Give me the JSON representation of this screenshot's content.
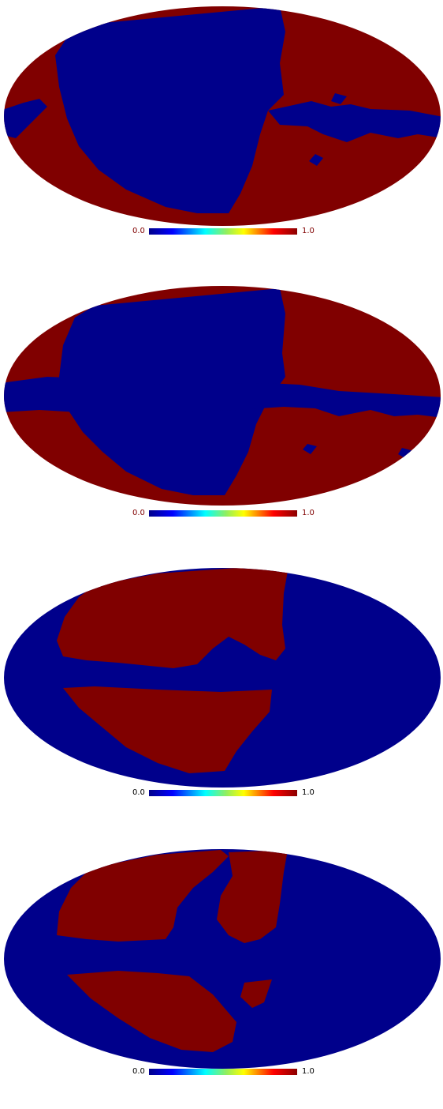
{
  "colors": {
    "zero": "#00008b",
    "one": "#800000"
  },
  "maps": [
    {
      "cbar_min": "0.0",
      "cbar_max": "1.0",
      "label_color": "#800000",
      "background": "one",
      "regions": [
        {
          "value": 0,
          "description": "large central and left-hemisphere blob"
        },
        {
          "value": 0,
          "description": "equatorial band on the right"
        },
        {
          "value": 0,
          "description": "left-edge equatorial patch"
        }
      ]
    },
    {
      "cbar_min": "0.0",
      "cbar_max": "1.0",
      "label_color": "#800000",
      "background": "one",
      "regions": [
        {
          "value": 0,
          "description": "large central blob"
        },
        {
          "value": 0,
          "description": "full equatorial band"
        }
      ]
    },
    {
      "cbar_min": "0.0",
      "cbar_max": "1.0",
      "label_color": "#000000",
      "background": "zero",
      "regions": [
        {
          "value": 1,
          "description": "upper-left lobe"
        },
        {
          "value": 1,
          "description": "lower-left lobe"
        }
      ]
    },
    {
      "cbar_min": "0.0",
      "cbar_max": "1.0",
      "label_color": "#000000",
      "background": "zero",
      "regions": [
        {
          "value": 1,
          "description": "upper-left lobe"
        },
        {
          "value": 1,
          "description": "upper-center-right lobe"
        },
        {
          "value": 1,
          "description": "lower-left lobe"
        }
      ]
    }
  ]
}
